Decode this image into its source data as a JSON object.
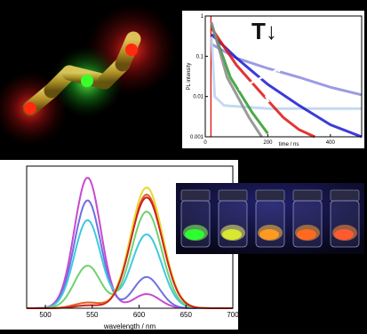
{
  "decay_panel": {
    "ylabel": "PL intensity",
    "xlabel": "time / ns",
    "y_ticks": [
      "1",
      "0.1",
      "0.01",
      "0.001"
    ],
    "x_ticks": [
      "0",
      "200",
      "400"
    ],
    "annotation": "T↓"
  },
  "spectra_panel": {
    "xlabel": "wavelength / nm",
    "x_ticks": [
      "500",
      "550",
      "600",
      "650",
      "700"
    ]
  },
  "chart_data": [
    {
      "type": "line",
      "title": "",
      "xlabel": "time / ns",
      "ylabel": "PL intensity",
      "y_scale": "log",
      "xlim": [
        0,
        500
      ],
      "ylim": [
        0.001,
        1
      ],
      "grid": false,
      "annotation": "T↓",
      "series": [
        {
          "color": "#8a8ae0",
          "x": [
            20,
            100,
            200,
            300,
            400,
            500
          ],
          "y": [
            0.2,
            0.09,
            0.05,
            0.03,
            0.017,
            0.011
          ]
        },
        {
          "color": "#b8d4f0",
          "x": [
            20,
            30,
            60,
            200,
            400,
            500
          ],
          "y": [
            0.3,
            0.01,
            0.006,
            0.005,
            0.005,
            0.005
          ]
        },
        {
          "color": "#1a1ad0",
          "x": [
            20,
            100,
            200,
            300,
            400,
            500
          ],
          "y": [
            0.35,
            0.09,
            0.02,
            0.006,
            0.002,
            0.001
          ]
        },
        {
          "color": "#e01010",
          "x": [
            20,
            100,
            200,
            250,
            300,
            350
          ],
          "y": [
            0.5,
            0.06,
            0.008,
            0.003,
            0.0015,
            0.001
          ]
        },
        {
          "color": "#2a9a2a",
          "x": [
            20,
            80,
            150,
            200
          ],
          "y": [
            0.6,
            0.03,
            0.004,
            0.0012
          ]
        },
        {
          "color": "#888888",
          "x": [
            20,
            70,
            140,
            180
          ],
          "y": [
            0.7,
            0.03,
            0.003,
            0.001
          ]
        }
      ]
    },
    {
      "type": "line",
      "title": "",
      "xlabel": "wavelength / nm",
      "ylabel": "",
      "xlim": [
        480,
        700
      ],
      "ylim": [
        0,
        1
      ],
      "grid": false,
      "series": [
        {
          "color": "#c84ad0",
          "peaks": [
            [
              545,
              0.92
            ],
            [
              608,
              0.1
            ]
          ],
          "widths": [
            14,
            14
          ]
        },
        {
          "color": "#7070e0",
          "peaks": [
            [
              545,
              0.76
            ],
            [
              608,
              0.22
            ]
          ],
          "widths": [
            14,
            14
          ]
        },
        {
          "color": "#40c8e0",
          "peaks": [
            [
              545,
              0.62
            ],
            [
              608,
              0.52
            ]
          ],
          "widths": [
            14,
            16
          ]
        },
        {
          "color": "#70d070",
          "peaks": [
            [
              545,
              0.3
            ],
            [
              608,
              0.68
            ]
          ],
          "widths": [
            14,
            16
          ]
        },
        {
          "color": "#e06020",
          "peaks": [
            [
              545,
              0.04
            ],
            [
              608,
              0.8
            ]
          ],
          "widths": [
            14,
            17
          ]
        },
        {
          "color": "#e8d830",
          "peaks": [
            [
              545,
              0.02
            ],
            [
              608,
              0.85
            ]
          ],
          "widths": [
            14,
            17
          ]
        },
        {
          "color": "#d02020",
          "peaks": [
            [
              545,
              0.02
            ],
            [
              608,
              0.78
            ]
          ],
          "widths": [
            14,
            17
          ]
        }
      ]
    }
  ],
  "vials": [
    {
      "liquid": "#2cff30",
      "glow": "#8cff60"
    },
    {
      "liquid": "#d8e830",
      "glow": "#f4f070"
    },
    {
      "liquid": "#ff9a20",
      "glow": "#ffc040"
    },
    {
      "liquid": "#ff6a20",
      "glow": "#ffa030"
    },
    {
      "liquid": "#ff5a30",
      "glow": "#ff9040"
    }
  ]
}
